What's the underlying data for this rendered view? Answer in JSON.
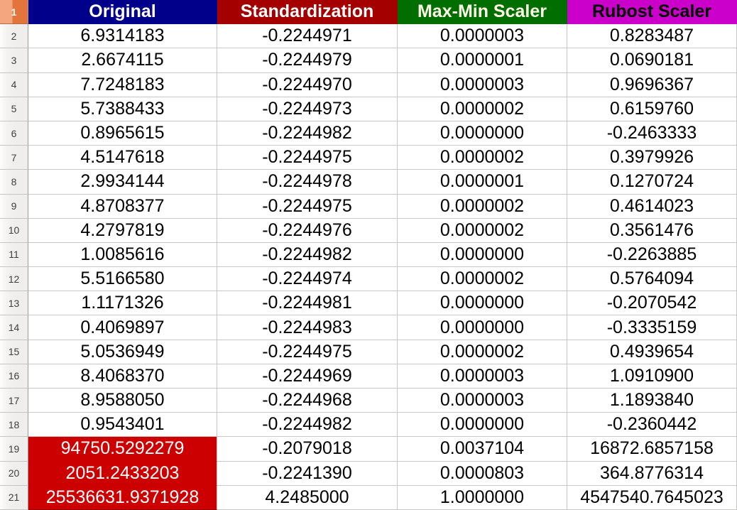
{
  "sheet": {
    "active_row_number": "1",
    "columns": [
      {
        "label": "Original",
        "bg": "#00008B",
        "fg": "#FFFFFF"
      },
      {
        "label": "Standardization",
        "bg": "#A40000",
        "fg": "#FFFFFF"
      },
      {
        "label": "Max-Min Scaler",
        "bg": "#006E00",
        "fg": "#FDFDE8"
      },
      {
        "label": "Rubost Scaler",
        "bg": "#CB00CB",
        "fg": "#000000"
      }
    ],
    "highlight": {
      "bg": "#CC0000",
      "fg": "#FFFFFF",
      "border_bottom": "#990000"
    },
    "rows": [
      {
        "n": "2",
        "highlight_first": false,
        "cells": [
          "6.9314183",
          "-0.2244971",
          "0.0000003",
          "0.8283487"
        ]
      },
      {
        "n": "3",
        "highlight_first": false,
        "cells": [
          "2.6674115",
          "-0.2244979",
          "0.0000001",
          "0.0690181"
        ]
      },
      {
        "n": "4",
        "highlight_first": false,
        "cells": [
          "7.7248183",
          "-0.2244970",
          "0.0000003",
          "0.9696367"
        ]
      },
      {
        "n": "5",
        "highlight_first": false,
        "cells": [
          "5.7388433",
          "-0.2244973",
          "0.0000002",
          "0.6159760"
        ]
      },
      {
        "n": "6",
        "highlight_first": false,
        "cells": [
          "0.8965615",
          "-0.2244982",
          "0.0000000",
          "-0.2463333"
        ]
      },
      {
        "n": "7",
        "highlight_first": false,
        "cells": [
          "4.5147618",
          "-0.2244975",
          "0.0000002",
          "0.3979926"
        ]
      },
      {
        "n": "8",
        "highlight_first": false,
        "cells": [
          "2.9934144",
          "-0.2244978",
          "0.0000001",
          "0.1270724"
        ]
      },
      {
        "n": "9",
        "highlight_first": false,
        "cells": [
          "4.8708377",
          "-0.2244975",
          "0.0000002",
          "0.4614023"
        ]
      },
      {
        "n": "10",
        "highlight_first": false,
        "cells": [
          "4.2797819",
          "-0.2244976",
          "0.0000002",
          "0.3561476"
        ]
      },
      {
        "n": "11",
        "highlight_first": false,
        "cells": [
          "1.0085616",
          "-0.2244982",
          "0.0000000",
          "-0.2263885"
        ]
      },
      {
        "n": "12",
        "highlight_first": false,
        "cells": [
          "5.5166580",
          "-0.2244974",
          "0.0000002",
          "0.5764094"
        ]
      },
      {
        "n": "13",
        "highlight_first": false,
        "cells": [
          "1.1171326",
          "-0.2244981",
          "0.0000000",
          "-0.2070542"
        ]
      },
      {
        "n": "14",
        "highlight_first": false,
        "cells": [
          "0.4069897",
          "-0.2244983",
          "0.0000000",
          "-0.3335159"
        ]
      },
      {
        "n": "15",
        "highlight_first": false,
        "cells": [
          "5.0536949",
          "-0.2244975",
          "0.0000002",
          "0.4939654"
        ]
      },
      {
        "n": "16",
        "highlight_first": false,
        "cells": [
          "8.4068370",
          "-0.2244969",
          "0.0000003",
          "1.0910900"
        ]
      },
      {
        "n": "17",
        "highlight_first": false,
        "cells": [
          "8.9588050",
          "-0.2244968",
          "0.0000003",
          "1.1893840"
        ]
      },
      {
        "n": "18",
        "highlight_first": false,
        "cells": [
          "0.9543401",
          "-0.2244982",
          "0.0000000",
          "-0.2360442"
        ]
      },
      {
        "n": "19",
        "highlight_first": true,
        "cells": [
          "94750.5292279",
          "-0.2079018",
          "0.0037104",
          "16872.6857158"
        ]
      },
      {
        "n": "20",
        "highlight_first": true,
        "cells": [
          "2051.2433203",
          "-0.2241390",
          "0.0000803",
          "364.8776314"
        ]
      },
      {
        "n": "21",
        "highlight_first": true,
        "cells": [
          "25536631.9371928",
          "4.2485000",
          "1.0000000",
          "4547540.7645023"
        ]
      }
    ]
  }
}
